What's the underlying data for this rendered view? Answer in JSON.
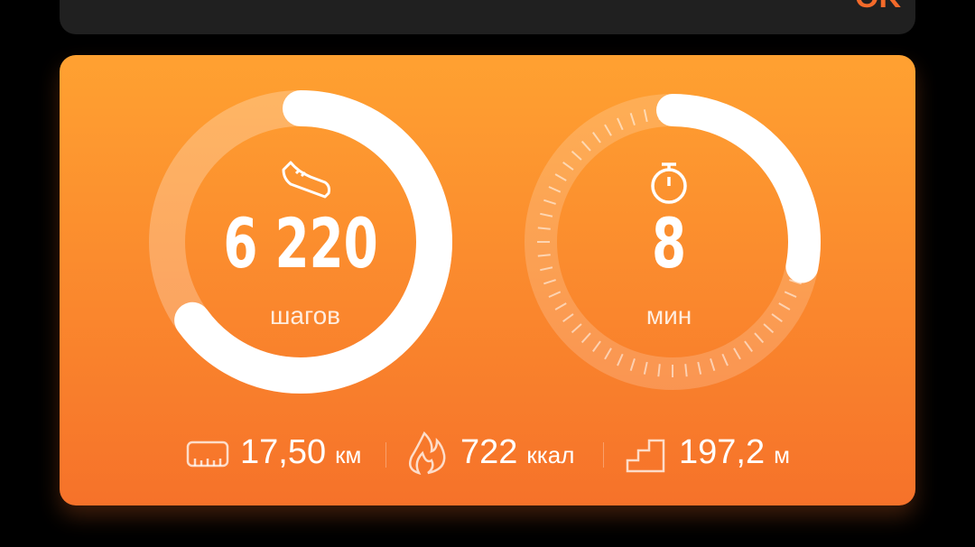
{
  "top_card": {
    "button_label": "OK"
  },
  "steps": {
    "value": "6 220",
    "unit": "шагов",
    "progress": 0.65,
    "icon": "sneaker-icon"
  },
  "active_time": {
    "value": "8",
    "unit": "мин",
    "progress": 0.28,
    "icon": "stopwatch-icon"
  },
  "stats": [
    {
      "icon": "ruler-icon",
      "value": "17,50",
      "unit": "км"
    },
    {
      "icon": "flame-icon",
      "value": "722",
      "unit": "ккал"
    },
    {
      "icon": "stairs-icon",
      "value": "197,2",
      "unit": "м"
    }
  ],
  "colors": {
    "card_top": "#ffa131",
    "card_bottom": "#f6722a",
    "accent": "#f36a2a"
  }
}
